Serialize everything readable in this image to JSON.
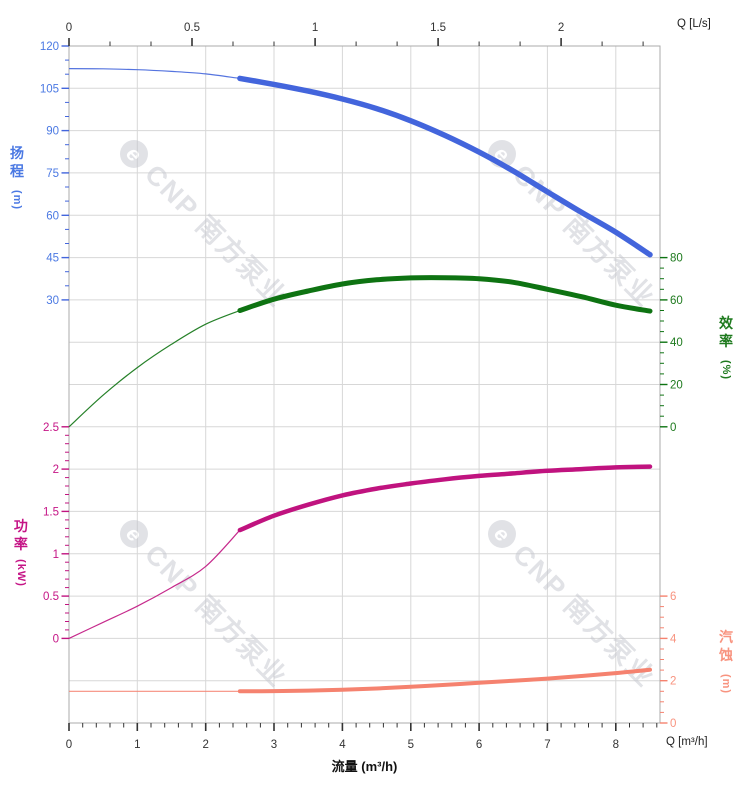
{
  "axes": {
    "top": {
      "unit_label": "Q [L/s]",
      "tick_values": [
        0,
        0.5,
        1,
        1.5,
        2
      ],
      "max": 2.4,
      "color": "#333333"
    },
    "bottom": {
      "unit_label": "Q [m³/h]",
      "title": "流量 (m³/h)",
      "tick_values": [
        0,
        1,
        2,
        3,
        4,
        5,
        6,
        7,
        8
      ],
      "max": 8.645,
      "color": "#333333"
    },
    "head": {
      "title": "扬程",
      "unit": "(m)",
      "color": "#4365DC",
      "label_color": "#4B79E3",
      "tick_values": [
        120,
        105,
        90,
        75,
        60,
        45,
        30
      ],
      "minor_step": 5,
      "shown_range": [
        30,
        120
      ]
    },
    "efficiency": {
      "title": "效率",
      "unit": "(%)",
      "color": "#0E7312",
      "label_color": "#1E7A1E",
      "tick_values": [
        80,
        60,
        40,
        20,
        0
      ],
      "minor_step": 5,
      "shown_range": [
        0,
        80
      ]
    },
    "power": {
      "title": "功率",
      "unit": "(kW)",
      "color": "#C0137F",
      "label_color": "#C51586",
      "tick_values": [
        2.5,
        2,
        1.5,
        1,
        0.5,
        0
      ],
      "minor_step": 0.1,
      "shown_range": [
        0,
        2.5
      ]
    },
    "npsh": {
      "title": "汽蚀",
      "unit": "(m)",
      "color": "#F5826F",
      "label_color": "#F8937F",
      "tick_values": [
        6,
        4,
        2,
        0
      ],
      "minor_step": 0.5,
      "shown_range": [
        0,
        6
      ]
    }
  },
  "watermark": {
    "logo_letter": "e",
    "text": "CNP 南方泵业",
    "count": 4,
    "color": "#c4c7cf"
  },
  "chart_data": {
    "type": "line",
    "title": "",
    "xlabel": "流量 (m³/h)",
    "x2label": "Q [L/s]",
    "xlim": [
      0,
      8.645
    ],
    "grid": true,
    "x": [
      0,
      0.5,
      1,
      1.5,
      2,
      2.5,
      3,
      3.5,
      4,
      4.5,
      5,
      5.5,
      6,
      6.5,
      7,
      7.5,
      8,
      8.5
    ],
    "series": [
      {
        "name": "扬程",
        "unit": "m",
        "axis": "head",
        "color": "#4365DC",
        "thick_from": 2.5,
        "values": [
          112,
          111.9,
          111.6,
          111,
          110.1,
          108.5,
          106.4,
          104,
          101.2,
          97.8,
          93.5,
          88.3,
          82.4,
          75.7,
          68.3,
          61,
          54,
          46
        ]
      },
      {
        "name": "效率",
        "unit": "%",
        "axis": "efficiency",
        "color": "#0E7312",
        "thick_from": 2.5,
        "values": [
          0,
          15,
          28,
          39,
          48.5,
          55,
          60.3,
          64.2,
          67.5,
          69.5,
          70.4,
          70.5,
          70,
          68.3,
          65,
          61.5,
          57.5,
          54.7
        ]
      },
      {
        "name": "功率",
        "unit": "kW",
        "axis": "power",
        "color": "#C0137F",
        "thick_from": 2.5,
        "values": [
          0,
          0.19,
          0.38,
          0.6,
          0.85,
          1.28,
          1.45,
          1.58,
          1.69,
          1.77,
          1.83,
          1.88,
          1.92,
          1.95,
          1.98,
          2.0,
          2.02,
          2.03
        ]
      },
      {
        "name": "汽蚀",
        "unit": "m",
        "axis": "npsh",
        "color": "#F5826F",
        "thick_from": 2.5,
        "values": [
          1.5,
          1.5,
          1.5,
          1.5,
          1.5,
          1.5,
          1.51,
          1.53,
          1.57,
          1.63,
          1.71,
          1.8,
          1.9,
          2.0,
          2.1,
          2.22,
          2.36,
          2.52
        ]
      }
    ]
  }
}
